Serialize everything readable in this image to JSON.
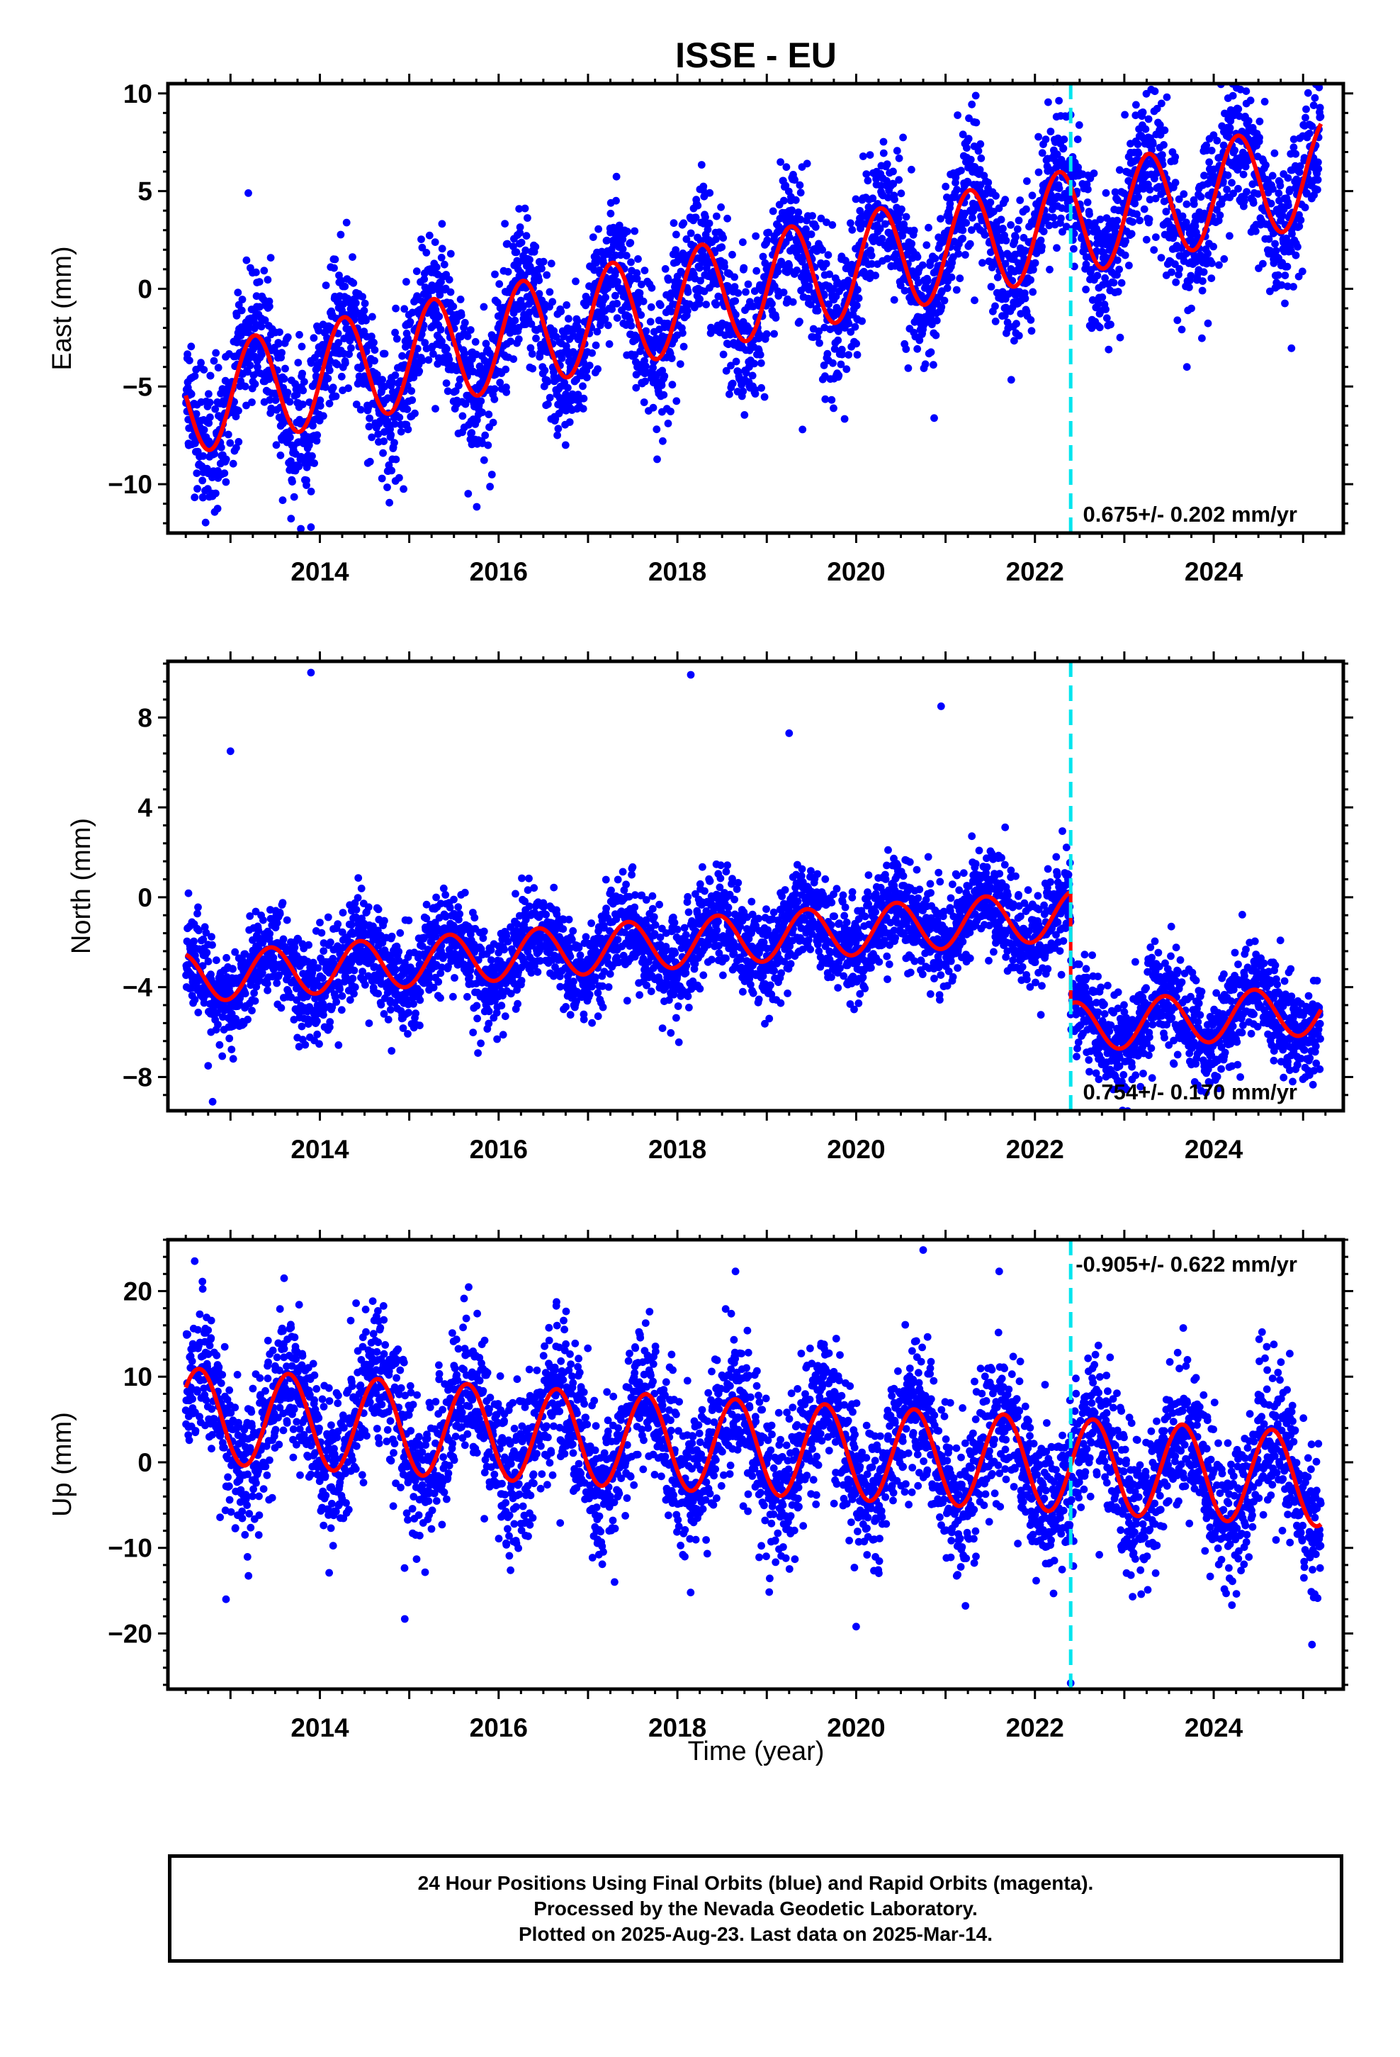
{
  "title": "ISSE - EU",
  "xlabel": "Time (year)",
  "colors": {
    "final_orbits": "#0000ff",
    "model": "#ff0000",
    "offset_marker": "#00e5ee",
    "frame": "#000000"
  },
  "caption": {
    "line1": "24 Hour Positions Using Final Orbits (blue) and Rapid Orbits (magenta).",
    "line2": "Processed by the Nevada Geodetic Laboratory.",
    "line3": "Plotted on 2025-Aug-23. Last data on 2025-Mar-14."
  },
  "chart_data": [
    {
      "type": "scatter",
      "component": "east",
      "ylabel": "East (mm)",
      "xlim": [
        2012.3,
        2025.45
      ],
      "ylim": [
        -12.5,
        10.5
      ],
      "yticks": [
        -10,
        -5,
        0,
        5,
        10
      ],
      "ytick_labels": [
        "−10",
        "−5",
        "0",
        "5",
        "10"
      ],
      "xticks": [
        2014,
        2016,
        2018,
        2020,
        2022,
        2024
      ],
      "xtick_labels": [
        "2014",
        "2016",
        "2018",
        "2020",
        "2022",
        "2024"
      ],
      "grid": false,
      "rate_label": "0.675+/- 0.202 mm/yr",
      "rate_label_position": "bottom-right",
      "data_start": 2012.5,
      "data_end": 2025.2,
      "offset_epoch": 2022.4,
      "model": {
        "trend_start": -5.8,
        "trend_end": 6.0,
        "annual_amplitude": 2.7,
        "annual_peak_phase": 0.27,
        "offset_at_epoch": 0.0
      },
      "scatter_sigma": 1.8,
      "outliers": [
        [
          2012.9,
          -9.5
        ],
        [
          2013.9,
          -12.2
        ],
        [
          2013.85,
          -9.8
        ],
        [
          2013.2,
          4.9
        ],
        [
          2023.3,
          10.2
        ],
        [
          2024.3,
          10.2
        ],
        [
          2019.4,
          -7.2
        ],
        [
          2023.7,
          -4.0
        ]
      ]
    },
    {
      "type": "scatter",
      "component": "north",
      "ylabel": "North (mm)",
      "xlim": [
        2012.3,
        2025.45
      ],
      "ylim": [
        -9.5,
        10.5
      ],
      "yticks": [
        -8,
        -4,
        0,
        4,
        8
      ],
      "ytick_labels": [
        "−8",
        "−4",
        "0",
        "4",
        "8"
      ],
      "xticks": [
        2014,
        2016,
        2018,
        2020,
        2022,
        2024
      ],
      "xtick_labels": [
        "2014",
        "2016",
        "2018",
        "2020",
        "2022",
        "2024"
      ],
      "grid": false,
      "rate_label": "0.754+/- 0.170 mm/yr",
      "rate_label_position": "bottom-right",
      "data_start": 2012.5,
      "data_end": 2025.2,
      "offset_epoch": 2022.4,
      "model": {
        "trend_start": -3.6,
        "trend_end": 0.0,
        "annual_amplitude": 1.1,
        "annual_peak_phase": 0.45,
        "offset_at_epoch": -5.0
      },
      "scatter_sigma": 1.1,
      "outliers": [
        [
          2013.9,
          10.0
        ],
        [
          2018.15,
          9.9
        ],
        [
          2013.0,
          6.5
        ],
        [
          2020.95,
          8.5
        ],
        [
          2012.8,
          -9.1
        ],
        [
          2012.75,
          -7.5
        ],
        [
          2015.8,
          -6.5
        ],
        [
          2022.9,
          -6.3
        ],
        [
          2019.25,
          7.3
        ]
      ]
    },
    {
      "type": "scatter",
      "component": "up",
      "ylabel": "Up (mm)",
      "xlim": [
        2012.3,
        2025.45
      ],
      "ylim": [
        -26.5,
        26
      ],
      "yticks": [
        -20,
        -10,
        0,
        10,
        20
      ],
      "ytick_labels": [
        "−20",
        "−10",
        "0",
        "10",
        "20"
      ],
      "xticks": [
        2014,
        2016,
        2018,
        2020,
        2022,
        2024
      ],
      "xtick_labels": [
        "2014",
        "2016",
        "2018",
        "2020",
        "2022",
        "2024"
      ],
      "grid": false,
      "rate_label": "-0.905+/- 0.622 mm/yr",
      "rate_label_position": "top-right",
      "data_start": 2012.5,
      "data_end": 2025.2,
      "offset_epoch": 2022.4,
      "model": {
        "trend_start": 5.5,
        "trend_end": -2.0,
        "annual_amplitude": 5.5,
        "annual_peak_phase": 0.65,
        "offset_at_epoch": 0.0
      },
      "scatter_sigma": 4.3,
      "outliers": [
        [
          2012.6,
          23.5
        ],
        [
          2013.6,
          21.5
        ],
        [
          2020.75,
          24.8
        ],
        [
          2018.65,
          22.3
        ],
        [
          2021.6,
          22.3
        ],
        [
          2022.4,
          -25.8
        ],
        [
          2020.0,
          -19.2
        ],
        [
          2025.1,
          -21.3
        ],
        [
          2014.95,
          -18.3
        ],
        [
          2012.95,
          -16.0
        ]
      ]
    }
  ]
}
